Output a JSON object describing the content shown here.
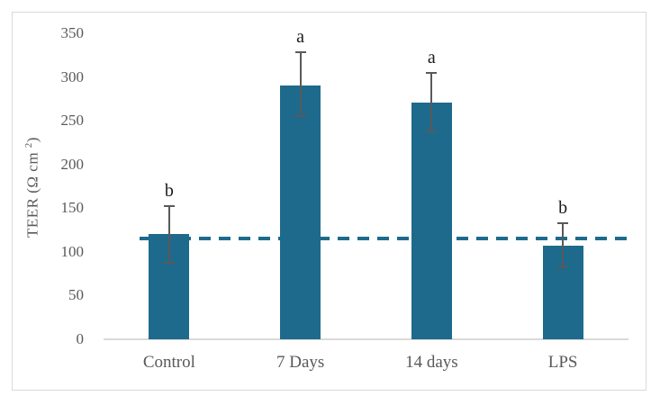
{
  "figure": {
    "background_color": "#ffffff",
    "frame_border_color": "#d9d9d9"
  },
  "chart_data": {
    "type": "bar",
    "title": "",
    "xlabel": "",
    "ylabel": "TEER (Ω cm²)",
    "ylabel_parts": {
      "prefix": "TEER (Ω cm ",
      "sup": "2",
      "suffix": ")"
    },
    "categories": [
      "Control",
      "7 Days",
      "14 days",
      "LPS"
    ],
    "values": [
      120,
      290,
      271,
      107
    ],
    "error_bars": {
      "upper": [
        152,
        328,
        305,
        133
      ],
      "lower": [
        88,
        255,
        238,
        82
      ]
    },
    "significance_letters": [
      "b",
      "a",
      "a",
      "b"
    ],
    "reference_line": {
      "value": 115,
      "style": "dashed",
      "color": "#1e6a8d"
    },
    "ylim": [
      0,
      350
    ],
    "ytick_interval": 50,
    "yticks": [
      350,
      300,
      250,
      200,
      150,
      100,
      50,
      0
    ],
    "grid": false,
    "legend": null,
    "bar_color": "#1e6a8d",
    "error_bar_color": "#595959",
    "axis_line_color": "#d9d9d9",
    "tick_label_color": "#595959",
    "letter_color": "#1a1a1a"
  }
}
